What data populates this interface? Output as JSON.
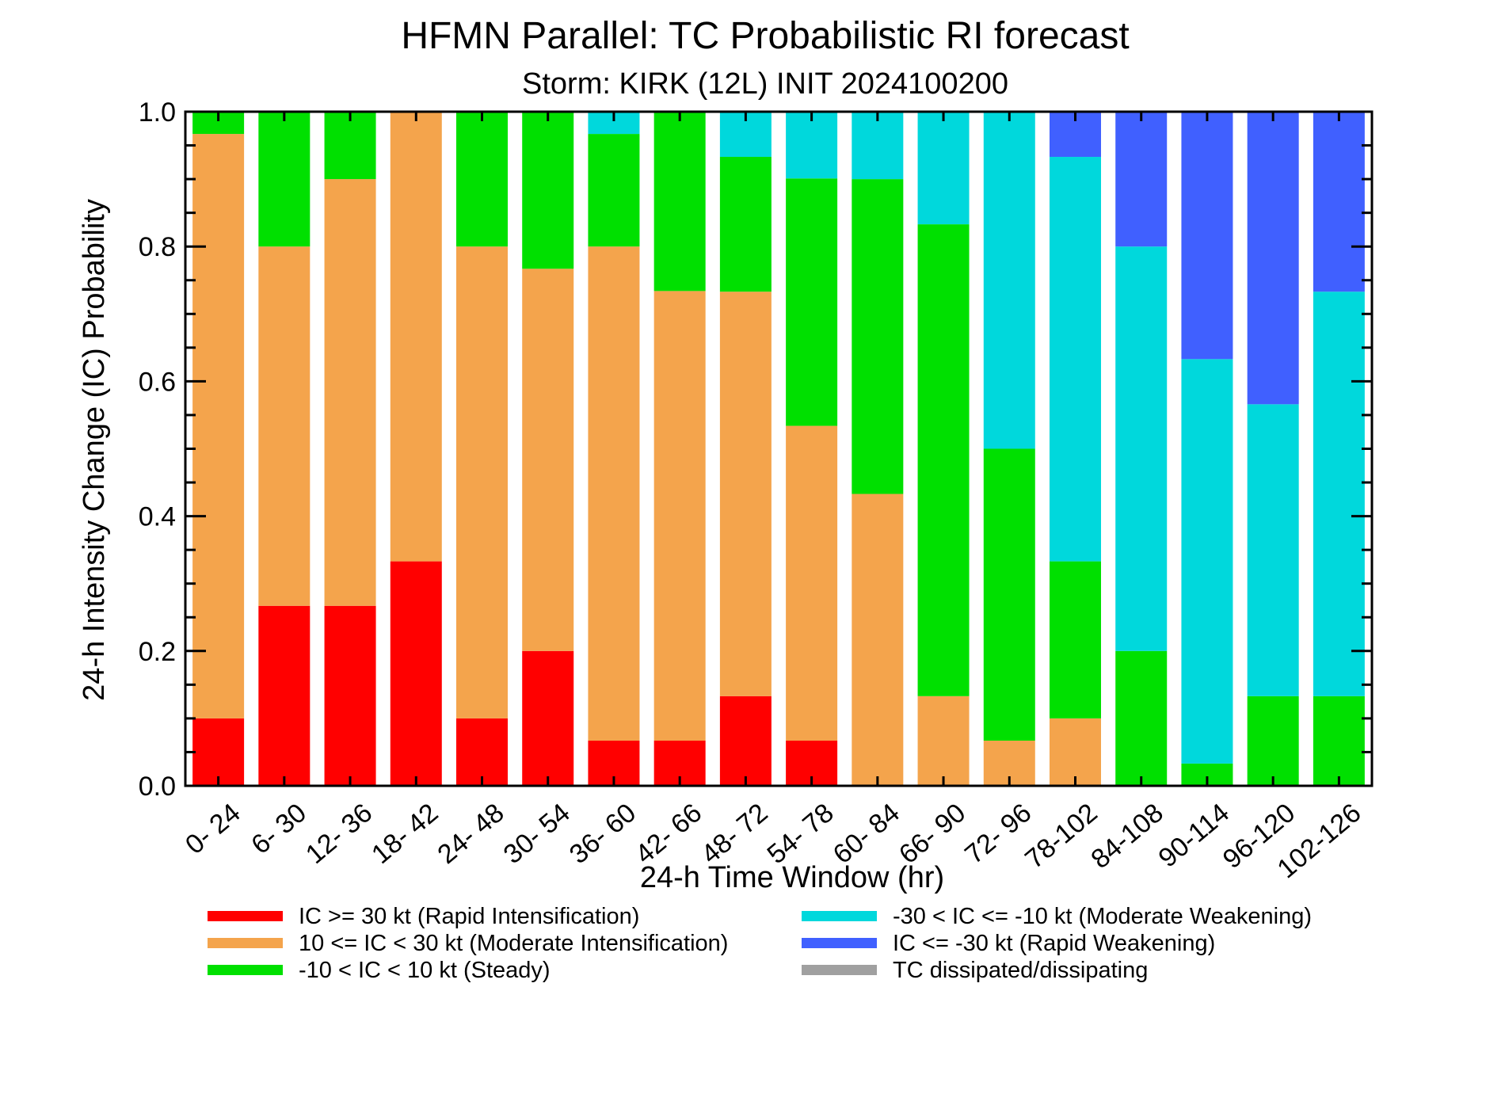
{
  "chart_data": {
    "type": "bar",
    "stacked": true,
    "title": "HFMN Parallel: TC Probabilistic RI forecast",
    "subtitle": "Storm: KIRK (12L) INIT 2024100200",
    "xlabel": "24-h Time Window (hr)",
    "ylabel": "24-h Intensity Change (IC) Probability",
    "ylim": [
      0,
      1
    ],
    "yticks": [
      "0.0",
      "0.2",
      "0.4",
      "0.6",
      "0.8",
      "1.0"
    ],
    "grid": false,
    "legend_position": "bottom",
    "categories": [
      "0- 24",
      "6- 30",
      "12- 36",
      "18- 42",
      "24- 48",
      "30- 54",
      "36- 60",
      "42- 66",
      "48- 72",
      "54- 78",
      "60- 84",
      "66- 90",
      "72- 96",
      "78-102",
      "84-108",
      "90-114",
      "96-120",
      "102-126"
    ],
    "series": [
      {
        "name": "IC >= 30 kt (Rapid Intensification)",
        "color": "#ff0000",
        "values": [
          0.1,
          0.267,
          0.267,
          0.333,
          0.1,
          0.2,
          0.067,
          0.067,
          0.133,
          0.067,
          0,
          0,
          0,
          0,
          0,
          0,
          0,
          0
        ]
      },
      {
        "name": "10 <= IC < 30 kt (Moderate Intensification)",
        "color": "#f4a44c",
        "values": [
          0.867,
          0.533,
          0.633,
          0.667,
          0.7,
          0.567,
          0.733,
          0.667,
          0.6,
          0.467,
          0.433,
          0.133,
          0.067,
          0.1,
          0,
          0,
          0,
          0
        ]
      },
      {
        "name": "-10 < IC < 10 kt (Steady)",
        "color": "#00e000",
        "values": [
          0.033,
          0.2,
          0.1,
          0,
          0.2,
          0.233,
          0.167,
          0.267,
          0.2,
          0.367,
          0.467,
          0.7,
          0.433,
          0.233,
          0.2,
          0.033,
          0.133,
          0.133
        ]
      },
      {
        "name": "-30 < IC <= -10 kt (Moderate Weakening)",
        "color": "#00d8dc",
        "values": [
          0,
          0,
          0,
          0,
          0,
          0,
          0.033,
          0,
          0.067,
          0.1,
          0.1,
          0.167,
          0.5,
          0.6,
          0.6,
          0.6,
          0.433,
          0.6
        ]
      },
      {
        "name": "IC <= -30 kt (Rapid Weakening)",
        "color": "#4060ff",
        "values": [
          0,
          0,
          0,
          0,
          0,
          0,
          0,
          0,
          0,
          0,
          0,
          0,
          0,
          0.067,
          0.2,
          0.367,
          0.433,
          0.267
        ]
      },
      {
        "name": "TC dissipated/dissipating",
        "color": "#a0a0a0",
        "values": [
          0,
          0,
          0,
          0,
          0,
          0,
          0,
          0,
          0,
          0,
          0,
          0,
          0,
          0,
          0,
          0,
          0,
          0
        ]
      }
    ]
  }
}
